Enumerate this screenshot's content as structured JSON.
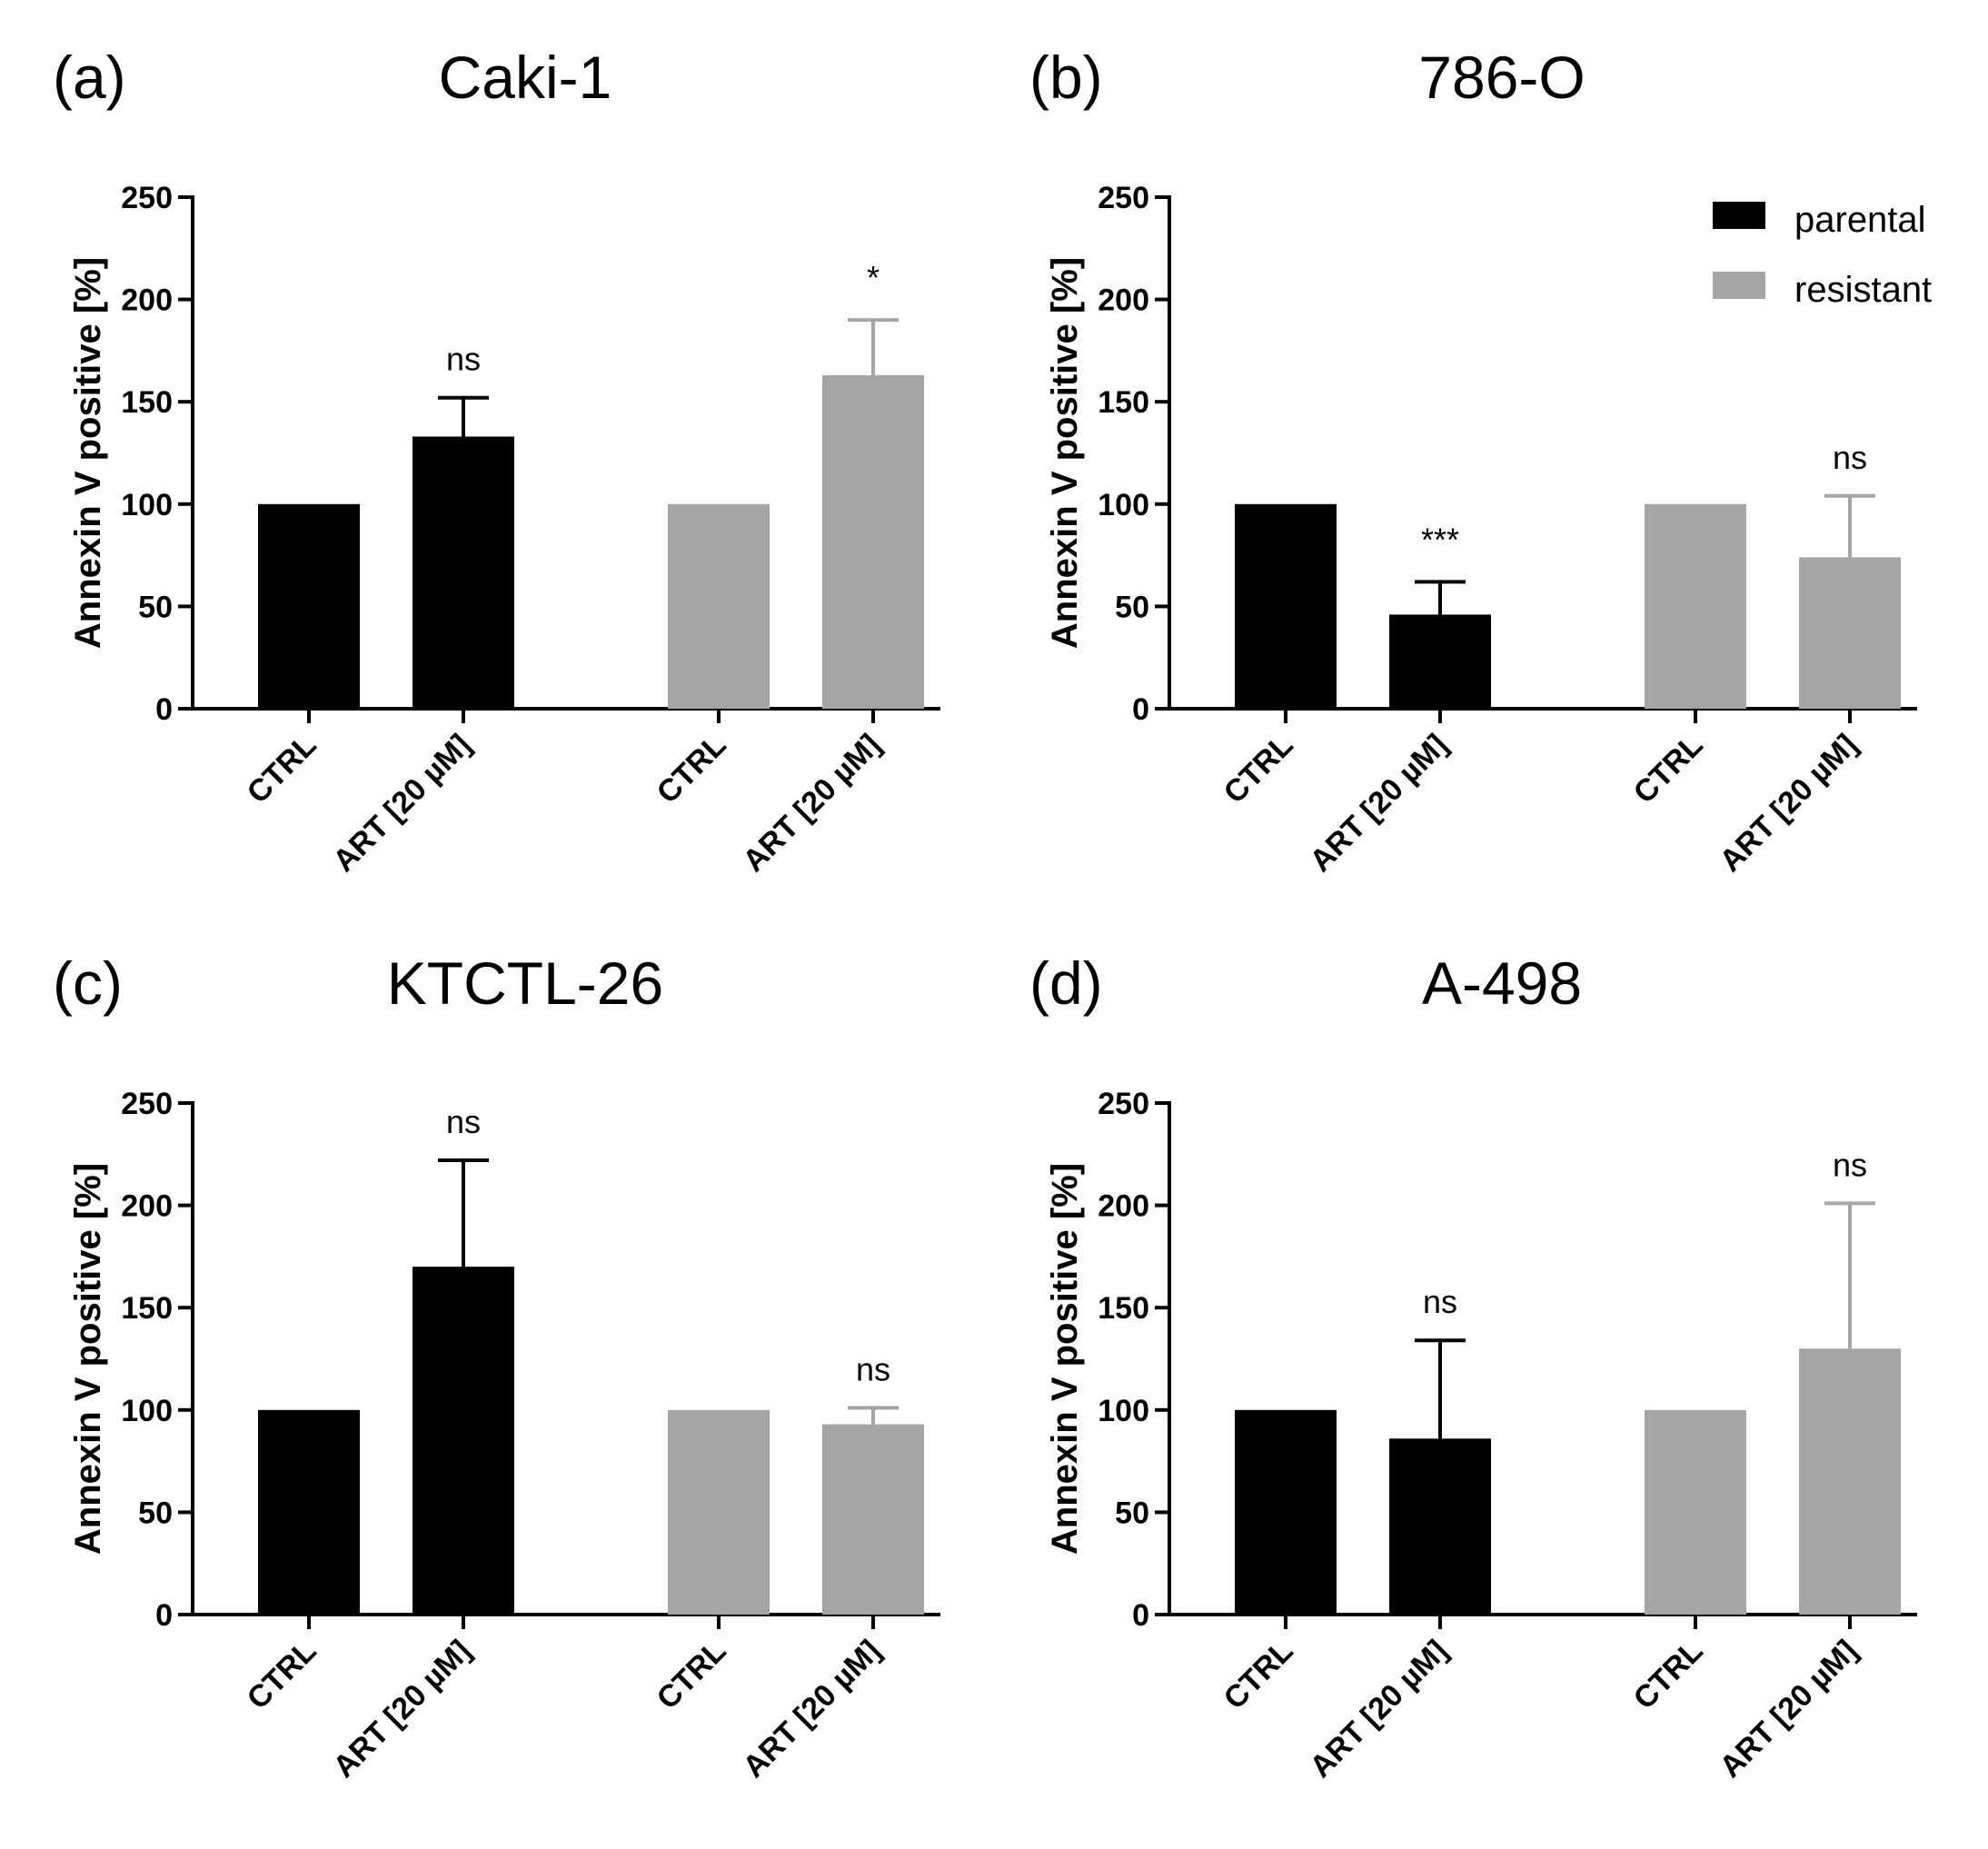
{
  "colors": {
    "parental": "#000000",
    "resistant": "#a5a5a8"
  },
  "legend": {
    "placement": "top-right of panel (b)",
    "entries": [
      {
        "label": "parental",
        "color": "#000000"
      },
      {
        "label": "resistant",
        "color": "#a5a5a8"
      }
    ]
  },
  "chart_data": [
    {
      "type": "bar",
      "panel": "(a)",
      "title": "Caki-1",
      "ylabel": "Annexin V positive [%]",
      "ylim": [
        0,
        250
      ],
      "yticks": [
        0,
        50,
        100,
        150,
        200,
        250
      ],
      "categories": [
        "CTRL",
        "ART [20 µM]",
        "CTRL",
        "ART [20 µM]"
      ],
      "groups": [
        "parental",
        "parental",
        "resistant",
        "resistant"
      ],
      "values": [
        100,
        133,
        100,
        163
      ],
      "errors": [
        0,
        19,
        0,
        27
      ],
      "significance": [
        "",
        "ns",
        "",
        "*"
      ]
    },
    {
      "type": "bar",
      "panel": "(b)",
      "title": "786-O",
      "ylabel": "Annexin V positive [%]",
      "ylim": [
        0,
        250
      ],
      "yticks": [
        0,
        50,
        100,
        150,
        200,
        250
      ],
      "categories": [
        "CTRL",
        "ART [20 µM]",
        "CTRL",
        "ART [20 µM]"
      ],
      "groups": [
        "parental",
        "parental",
        "resistant",
        "resistant"
      ],
      "values": [
        100,
        46,
        100,
        74
      ],
      "errors": [
        0,
        16,
        0,
        30
      ],
      "significance": [
        "",
        "***",
        "",
        "ns"
      ]
    },
    {
      "type": "bar",
      "panel": "(c)",
      "title": "KTCTL-26",
      "ylabel": "Annexin V positive [%]",
      "ylim": [
        0,
        250
      ],
      "yticks": [
        0,
        50,
        100,
        150,
        200,
        250
      ],
      "categories": [
        "CTRL",
        "ART [20 µM]",
        "CTRL",
        "ART [20 µM]"
      ],
      "groups": [
        "parental",
        "parental",
        "resistant",
        "resistant"
      ],
      "values": [
        100,
        170,
        100,
        93
      ],
      "errors": [
        0,
        52,
        0,
        8
      ],
      "significance": [
        "",
        "ns",
        "",
        "ns"
      ]
    },
    {
      "type": "bar",
      "panel": "(d)",
      "title": "A-498",
      "ylabel": "Annexin V positive [%]",
      "ylim": [
        0,
        250
      ],
      "yticks": [
        0,
        50,
        100,
        150,
        200,
        250
      ],
      "categories": [
        "CTRL",
        "ART [20 µM]",
        "CTRL",
        "ART [20 µM]"
      ],
      "groups": [
        "parental",
        "parental",
        "resistant",
        "resistant"
      ],
      "values": [
        100,
        86,
        100,
        130
      ],
      "errors": [
        0,
        48,
        0,
        71
      ],
      "significance": [
        "",
        "ns",
        "",
        "ns"
      ]
    }
  ]
}
